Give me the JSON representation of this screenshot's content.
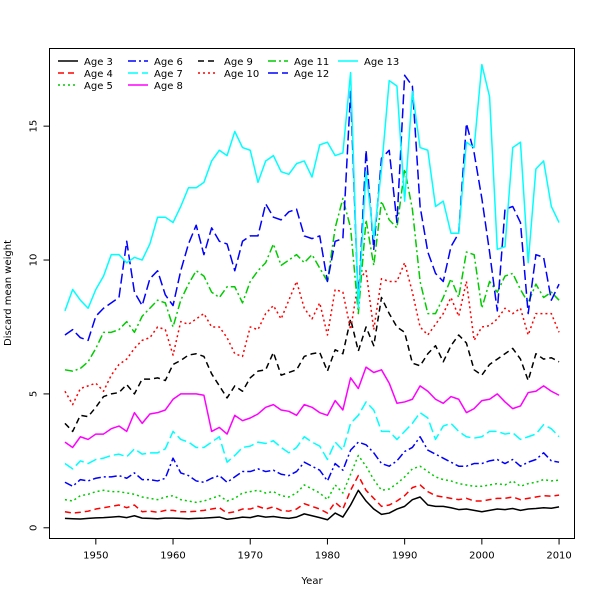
{
  "chart_data": {
    "type": "line",
    "xlabel": "Year",
    "ylabel": "Discard mean weight",
    "xlim": [
      1944,
      2012
    ],
    "ylim": [
      -0.4,
      17.9
    ],
    "xticks": [
      1950,
      1960,
      1970,
      1980,
      1990,
      2000,
      2010
    ],
    "yticks": [
      0,
      5,
      10,
      15
    ],
    "grid": false,
    "legend_position": "top-left",
    "x": [
      1946,
      1947,
      1948,
      1949,
      1950,
      1951,
      1952,
      1953,
      1954,
      1955,
      1956,
      1957,
      1958,
      1959,
      1960,
      1961,
      1962,
      1963,
      1964,
      1965,
      1966,
      1967,
      1968,
      1969,
      1970,
      1971,
      1972,
      1973,
      1974,
      1975,
      1976,
      1977,
      1978,
      1979,
      1980,
      1981,
      1982,
      1983,
      1984,
      1985,
      1986,
      1987,
      1988,
      1989,
      1990,
      1991,
      1992,
      1993,
      1994,
      1995,
      1996,
      1997,
      1998,
      1999,
      2000,
      2001,
      2002,
      2003,
      2004,
      2005,
      2006,
      2007,
      2008,
      2009,
      2010
    ],
    "series": [
      {
        "name": "Age 3",
        "color": "#000000",
        "dash": "solid",
        "values": [
          0.35,
          0.34,
          0.33,
          0.35,
          0.37,
          0.38,
          0.4,
          0.42,
          0.38,
          0.45,
          0.36,
          0.35,
          0.34,
          0.36,
          0.36,
          0.35,
          0.34,
          0.35,
          0.36,
          0.38,
          0.4,
          0.32,
          0.35,
          0.4,
          0.38,
          0.45,
          0.4,
          0.42,
          0.38,
          0.35,
          0.4,
          0.52,
          0.45,
          0.38,
          0.3,
          0.55,
          0.4,
          0.85,
          1.4,
          1.0,
          0.7,
          0.5,
          0.55,
          0.7,
          0.8,
          1.05,
          1.15,
          0.85,
          0.8,
          0.8,
          0.75,
          0.68,
          0.7,
          0.65,
          0.6,
          0.65,
          0.7,
          0.68,
          0.72,
          0.65,
          0.7,
          0.72,
          0.75,
          0.73,
          0.78
        ]
      },
      {
        "name": "Age 4",
        "color": "#ff0000",
        "dash": "dashed",
        "values": [
          0.6,
          0.55,
          0.58,
          0.62,
          0.7,
          0.75,
          0.8,
          0.85,
          0.75,
          0.85,
          0.6,
          0.62,
          0.58,
          0.65,
          0.65,
          0.6,
          0.6,
          0.62,
          0.65,
          0.7,
          0.75,
          0.55,
          0.6,
          0.7,
          0.7,
          0.8,
          0.7,
          0.78,
          0.65,
          0.62,
          0.7,
          0.9,
          0.8,
          0.7,
          0.55,
          0.95,
          0.7,
          1.4,
          1.95,
          1.4,
          1.1,
          0.8,
          0.85,
          1.0,
          1.2,
          1.5,
          1.6,
          1.35,
          1.2,
          1.15,
          1.1,
          1.05,
          1.1,
          1.0,
          1.0,
          1.05,
          1.1,
          1.1,
          1.15,
          1.05,
          1.1,
          1.15,
          1.2,
          1.18,
          1.22
        ]
      },
      {
        "name": "Age 5",
        "color": "#00cc00",
        "dash": "dotted",
        "values": [
          1.05,
          1.0,
          1.2,
          1.25,
          1.35,
          1.4,
          1.35,
          1.35,
          1.3,
          1.25,
          1.15,
          1.1,
          1.05,
          1.15,
          1.2,
          1.05,
          1.0,
          0.95,
          1.0,
          1.1,
          1.2,
          1.0,
          1.1,
          1.3,
          1.35,
          1.4,
          1.3,
          1.35,
          1.2,
          1.15,
          1.3,
          1.6,
          1.45,
          1.3,
          1.05,
          1.6,
          1.3,
          2.0,
          2.7,
          2.3,
          1.8,
          1.4,
          1.45,
          1.65,
          1.9,
          2.2,
          2.3,
          2.1,
          1.9,
          1.8,
          1.75,
          1.65,
          1.6,
          1.55,
          1.55,
          1.6,
          1.65,
          1.6,
          1.75,
          1.55,
          1.65,
          1.7,
          1.8,
          1.75,
          1.78
        ]
      },
      {
        "name": "Age 6",
        "color": "#0000ff",
        "dash": "dashdot",
        "values": [
          1.7,
          1.55,
          1.8,
          1.75,
          1.85,
          1.9,
          1.9,
          1.95,
          1.85,
          2.05,
          1.8,
          1.8,
          1.75,
          1.85,
          2.6,
          2.05,
          1.95,
          1.75,
          1.7,
          1.85,
          1.95,
          1.7,
          1.9,
          2.1,
          2.1,
          2.2,
          2.1,
          2.15,
          2.0,
          1.95,
          2.1,
          2.45,
          2.3,
          2.15,
          1.75,
          2.4,
          2.15,
          2.9,
          3.2,
          3.1,
          2.8,
          2.4,
          2.3,
          2.5,
          2.85,
          3.0,
          3.4,
          2.9,
          2.75,
          2.6,
          2.45,
          2.3,
          2.3,
          2.4,
          2.4,
          2.5,
          2.55,
          2.4,
          2.55,
          2.3,
          2.45,
          2.55,
          2.8,
          2.5,
          2.45
        ]
      },
      {
        "name": "Age 7",
        "color": "#00ffff",
        "dash": "longdash",
        "values": [
          2.4,
          2.2,
          2.5,
          2.4,
          2.55,
          2.6,
          2.7,
          2.75,
          2.65,
          2.95,
          2.75,
          2.8,
          2.8,
          2.95,
          3.6,
          3.3,
          3.2,
          3.0,
          3.0,
          3.2,
          3.4,
          2.45,
          2.7,
          3.0,
          3.05,
          3.2,
          3.15,
          3.25,
          3.0,
          2.8,
          3.0,
          3.4,
          3.2,
          3.05,
          2.55,
          3.2,
          2.9,
          3.9,
          4.2,
          4.7,
          4.4,
          3.6,
          3.6,
          3.3,
          3.6,
          3.9,
          4.3,
          4.1,
          3.3,
          3.8,
          3.9,
          3.6,
          3.4,
          3.35,
          3.4,
          3.6,
          3.6,
          3.5,
          3.55,
          3.3,
          3.4,
          3.5,
          3.85,
          3.7,
          3.4
        ]
      },
      {
        "name": "Age 8",
        "color": "#ff00ff",
        "dash": "solid",
        "values": [
          3.2,
          3.0,
          3.4,
          3.3,
          3.5,
          3.5,
          3.7,
          3.8,
          3.6,
          4.3,
          3.9,
          4.25,
          4.3,
          4.4,
          4.8,
          5.0,
          5.0,
          5.0,
          4.95,
          3.6,
          3.75,
          3.5,
          4.2,
          4.0,
          4.1,
          4.25,
          4.5,
          4.6,
          4.4,
          4.35,
          4.2,
          4.6,
          4.5,
          4.3,
          4.2,
          4.75,
          4.4,
          5.6,
          5.2,
          6.0,
          5.8,
          5.9,
          5.4,
          4.65,
          4.7,
          4.8,
          5.3,
          5.1,
          4.8,
          4.65,
          4.9,
          4.8,
          4.3,
          4.45,
          4.75,
          4.8,
          5.0,
          4.7,
          4.45,
          4.55,
          5.05,
          5.1,
          5.3,
          5.1,
          4.95
        ]
      },
      {
        "name": "Age 9",
        "color": "#000000",
        "dash": "dashed",
        "values": [
          3.9,
          3.6,
          4.2,
          4.15,
          4.5,
          4.9,
          5.0,
          5.05,
          5.35,
          5.0,
          5.55,
          5.55,
          5.6,
          5.5,
          6.1,
          6.25,
          6.45,
          6.5,
          6.4,
          5.75,
          5.3,
          4.85,
          5.3,
          5.1,
          5.6,
          5.85,
          5.9,
          6.55,
          5.7,
          5.8,
          5.9,
          6.4,
          6.5,
          6.55,
          5.85,
          6.65,
          6.5,
          7.8,
          6.6,
          7.5,
          6.8,
          8.6,
          8.0,
          7.5,
          7.3,
          6.15,
          6.05,
          6.5,
          6.8,
          6.2,
          6.8,
          7.2,
          6.9,
          5.9,
          5.7,
          6.1,
          6.3,
          6.5,
          6.7,
          6.3,
          5.5,
          6.5,
          6.3,
          6.35,
          6.2
        ]
      },
      {
        "name": "Age 10",
        "color": "#ff0000",
        "dash": "dotted",
        "values": [
          5.1,
          4.6,
          5.2,
          5.3,
          5.4,
          5.1,
          5.7,
          6.1,
          6.3,
          6.7,
          7.0,
          7.1,
          7.5,
          7.4,
          6.45,
          7.7,
          7.6,
          7.8,
          8.0,
          7.5,
          7.5,
          7.1,
          6.5,
          6.4,
          7.5,
          7.4,
          8.0,
          8.3,
          7.8,
          8.5,
          9.2,
          8.2,
          7.8,
          8.4,
          7.2,
          8.9,
          8.8,
          7.4,
          9.2,
          9.6,
          7.4,
          9.3,
          9.2,
          9.2,
          9.9,
          8.8,
          7.5,
          7.2,
          7.6,
          8.0,
          8.6,
          7.9,
          9.2,
          7.0,
          7.5,
          7.55,
          7.8,
          8.2,
          8.0,
          8.2,
          7.2,
          8.0,
          8.0,
          8.0,
          7.3
        ]
      },
      {
        "name": "Age 11",
        "color": "#00cc00",
        "dash": "dashdot",
        "values": [
          5.9,
          5.85,
          5.95,
          6.2,
          6.7,
          7.3,
          7.3,
          7.4,
          7.7,
          7.3,
          7.9,
          8.2,
          8.5,
          8.4,
          7.5,
          8.5,
          9.1,
          9.6,
          9.4,
          8.8,
          8.6,
          9.0,
          9.0,
          8.4,
          9.2,
          9.6,
          9.9,
          10.6,
          9.8,
          10.0,
          10.2,
          9.9,
          10.2,
          9.7,
          9.2,
          11.2,
          12.3,
          11.2,
          8.0,
          11.5,
          9.8,
          12.2,
          11.5,
          11.2,
          13.4,
          11.9,
          9.2,
          8.0,
          8.0,
          8.6,
          9.3,
          8.6,
          10.3,
          10.2,
          8.2,
          9.2,
          8.8,
          9.4,
          9.5,
          8.9,
          8.4,
          9.1,
          8.6,
          8.8,
          8.5
        ]
      },
      {
        "name": "Age 12",
        "color": "#0000ff",
        "dash": "longdash",
        "values": [
          7.2,
          7.4,
          7.1,
          7.0,
          7.9,
          8.2,
          8.4,
          8.6,
          10.7,
          8.8,
          8.3,
          9.3,
          9.6,
          8.7,
          8.3,
          9.6,
          10.6,
          11.3,
          10.2,
          11.2,
          10.7,
          10.6,
          9.6,
          10.7,
          10.9,
          10.9,
          12.1,
          11.6,
          11.5,
          11.8,
          11.9,
          10.9,
          10.8,
          10.9,
          9.2,
          10.7,
          10.8,
          16.3,
          8.3,
          14.1,
          10.4,
          13.8,
          14.1,
          11.4,
          16.9,
          16.5,
          12.0,
          10.3,
          9.5,
          9.2,
          10.5,
          11.0,
          15.1,
          14.0,
          12.3,
          10.3,
          8.1,
          11.9,
          12.0,
          11.4,
          8.0,
          10.2,
          10.1,
          8.5,
          9.1
        ]
      },
      {
        "name": "Age 13",
        "color": "#00ffff",
        "dash": "solid",
        "values": [
          8.1,
          8.9,
          8.5,
          8.2,
          8.9,
          9.4,
          10.2,
          10.2,
          9.9,
          10.1,
          10.0,
          10.6,
          11.6,
          11.6,
          11.4,
          12.0,
          12.7,
          12.7,
          12.9,
          13.7,
          14.1,
          13.9,
          14.8,
          14.2,
          14.1,
          12.9,
          13.7,
          13.9,
          13.3,
          13.2,
          13.6,
          13.7,
          13.1,
          14.3,
          14.4,
          13.9,
          14.0,
          17.0,
          8.2,
          13.3,
          10.8,
          13.4,
          16.7,
          16.5,
          12.2,
          16.3,
          14.2,
          14.1,
          12.0,
          12.2,
          11.0,
          11.0,
          14.4,
          14.2,
          17.3,
          16.1,
          10.4,
          10.5,
          14.2,
          14.4,
          9.9,
          13.4,
          13.7,
          12.0,
          11.4
        ]
      }
    ]
  }
}
